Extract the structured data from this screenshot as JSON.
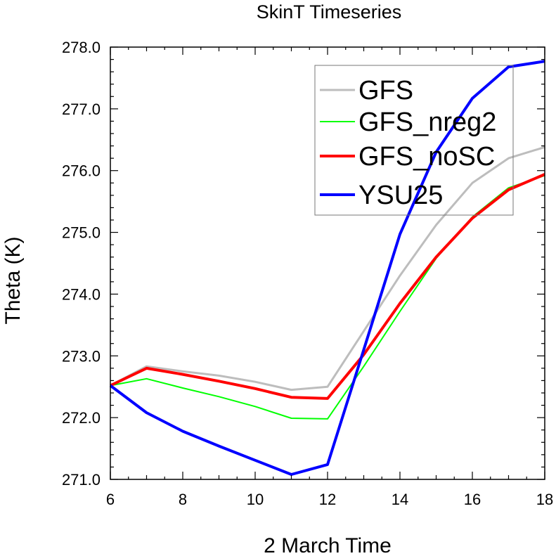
{
  "chart_data": {
    "type": "line",
    "title": "SkinT Timeseries",
    "xlabel": "2 March Time",
    "ylabel": "Theta (K)",
    "xlim": [
      6,
      18
    ],
    "ylim": [
      271.0,
      278.0
    ],
    "xticks": [
      "6",
      "8",
      "10",
      "12",
      "14",
      "16",
      "18"
    ],
    "yticks": [
      "271.0",
      "272.0",
      "273.0",
      "274.0",
      "275.0",
      "276.0",
      "277.0",
      "278.0"
    ],
    "grid": false,
    "legend_position": "top-right",
    "x": [
      6,
      7,
      8,
      9,
      10,
      11,
      12,
      13,
      14,
      15,
      16,
      17,
      18
    ],
    "series": [
      {
        "name": "GFS",
        "color": "#bdbdbd",
        "values": [
          272.52,
          272.83,
          272.75,
          272.68,
          272.58,
          272.45,
          272.5,
          273.4,
          274.3,
          275.12,
          275.8,
          276.2,
          276.38
        ]
      },
      {
        "name": "GFS_nreg2",
        "color": "#00ff00",
        "values": [
          272.52,
          272.63,
          272.48,
          272.34,
          272.18,
          271.99,
          271.98,
          272.83,
          273.72,
          274.58,
          275.25,
          275.72,
          275.92
        ]
      },
      {
        "name": "GFS_noSC",
        "color": "#ff0000",
        "values": [
          272.52,
          272.8,
          272.7,
          272.59,
          272.47,
          272.33,
          272.31,
          273.02,
          273.85,
          274.6,
          275.23,
          275.69,
          275.94
        ]
      },
      {
        "name": "YSU25",
        "color": "#0000ff",
        "values": [
          272.52,
          272.08,
          271.78,
          271.54,
          271.31,
          271.08,
          271.24,
          273.1,
          274.97,
          276.3,
          277.17,
          277.68,
          277.77
        ]
      }
    ]
  }
}
